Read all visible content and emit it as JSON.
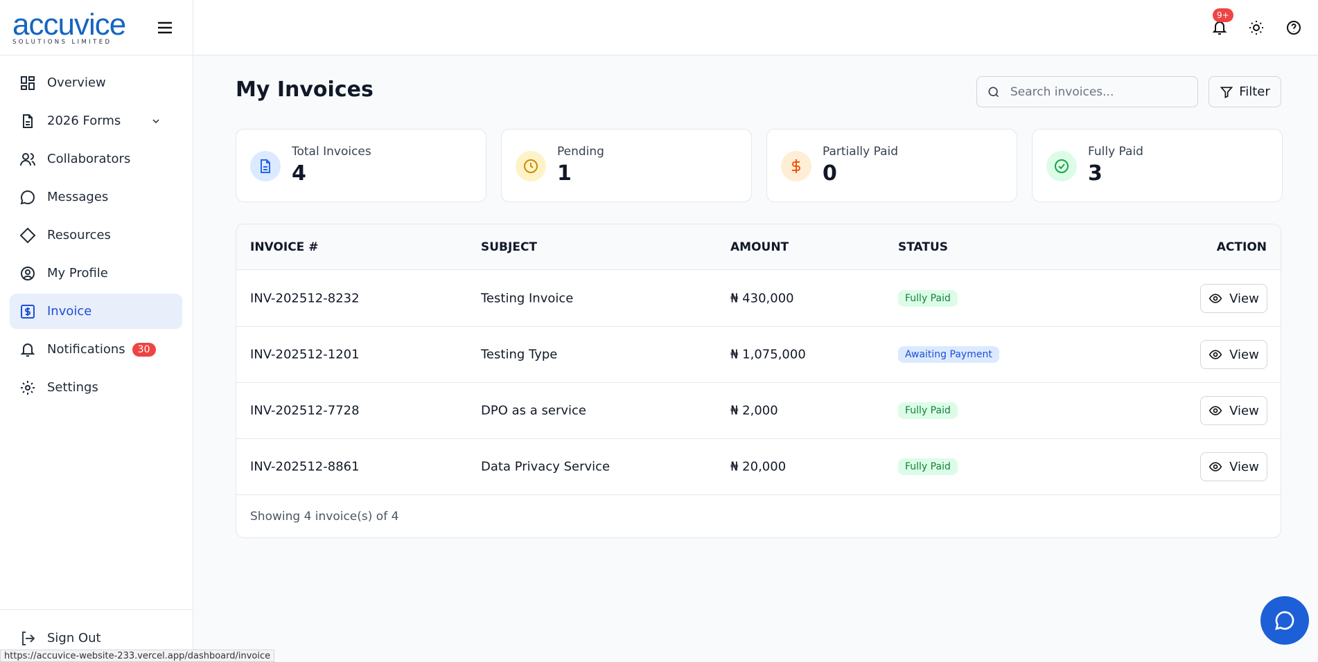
{
  "sidebar": {
    "logo": "accuvice",
    "logo_tagline": "SOLUTIONS LIMITED",
    "nav": [
      {
        "label": "Overview"
      },
      {
        "label": "2026 Forms"
      },
      {
        "label": "Collaborators"
      },
      {
        "label": "Messages"
      },
      {
        "label": "Resources"
      },
      {
        "label": "My Profile"
      },
      {
        "label": "Invoice"
      },
      {
        "label": "Notifications",
        "badge": 30
      },
      {
        "label": "Settings"
      }
    ],
    "sign_out": "Sign Out"
  },
  "header": {
    "notification_badge": "9+"
  },
  "page": {
    "title": "My Invoices",
    "search_placeholder": "Search invoices...",
    "filter": "Filter"
  },
  "stats": [
    {
      "label": "Total Invoices",
      "value": 4
    },
    {
      "label": "Pending",
      "value": 1
    },
    {
      "label": "Partially Paid",
      "value": 0
    },
    {
      "label": "Fully Paid",
      "value": 3
    }
  ],
  "table": {
    "columns": [
      "INVOICE #",
      "SUBJECT",
      "AMOUNT",
      "STATUS",
      "ACTION"
    ],
    "rows": [
      [
        "INV-202512-8232",
        "Testing Invoice",
        "₦ 430,000",
        "Fully Paid",
        "View"
      ],
      [
        "INV-202512-1201",
        "Testing Type",
        "₦ 1,075,000",
        "Awaiting Payment",
        "View"
      ],
      [
        "INV-202512-7728",
        "DPO as a service",
        "₦ 2,000",
        "Fully Paid",
        "View"
      ],
      [
        "INV-202512-8861",
        "Data Privacy Service",
        "₦ 20,000",
        "Fully Paid",
        "View"
      ]
    ],
    "footer": "Showing 4 invoice(s) of 4"
  },
  "status_bar": "https://accuvice-website-233.vercel.app/dashboard/invoice"
}
